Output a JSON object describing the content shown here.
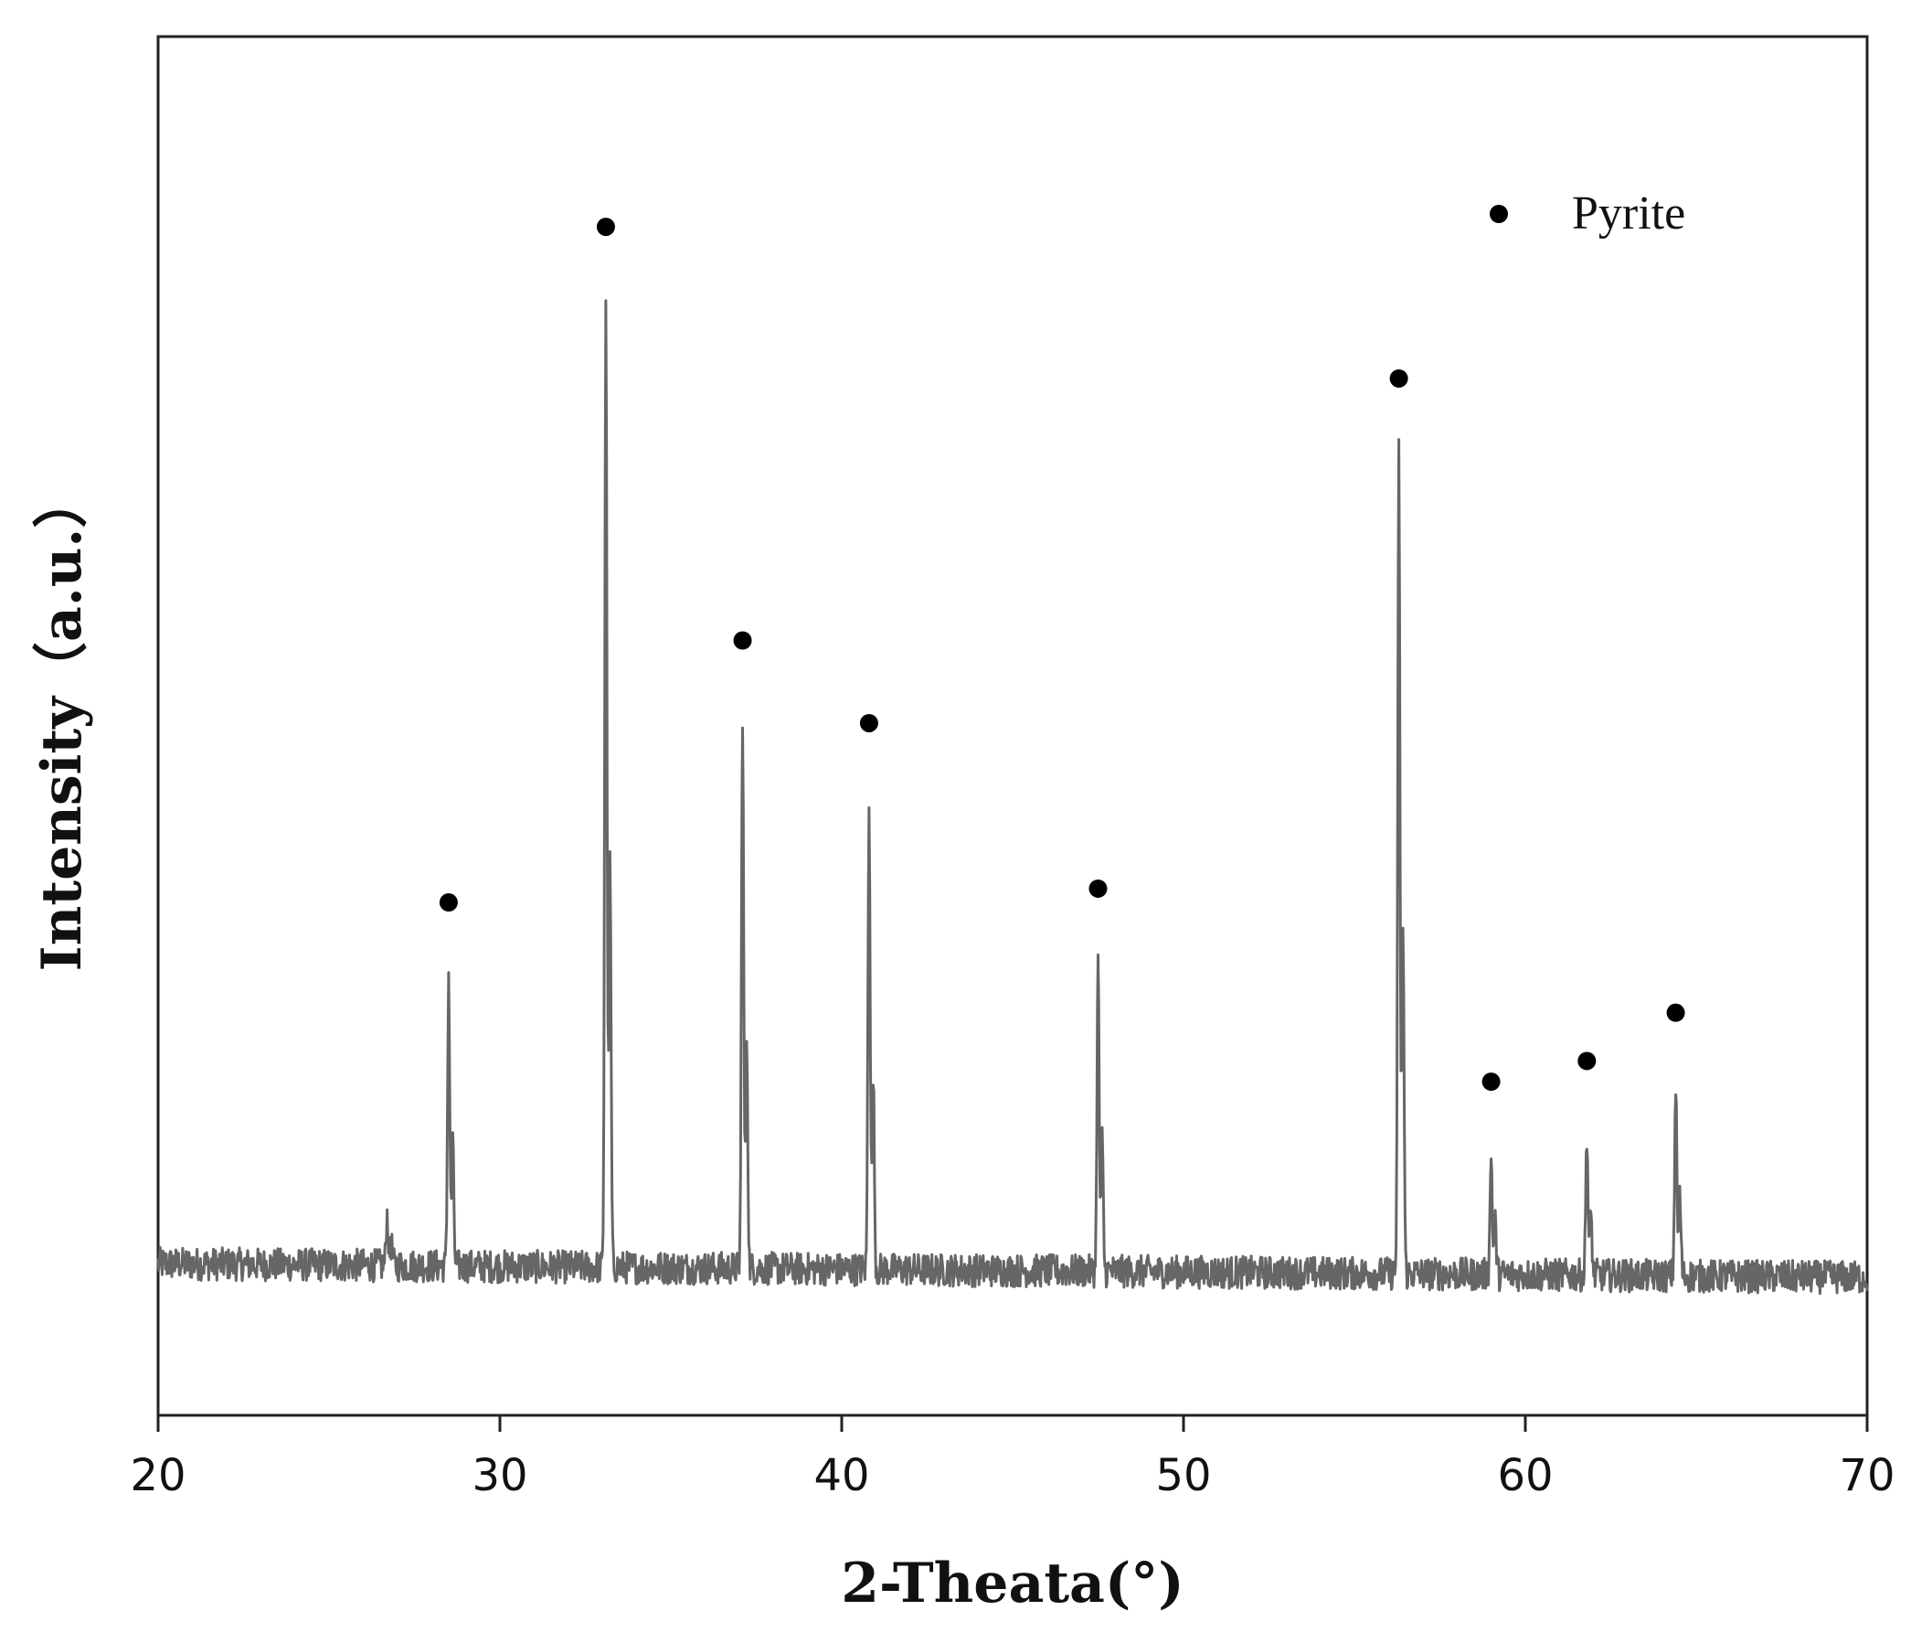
{
  "chart_data": {
    "type": "line",
    "title": "",
    "xlabel": "2-Theata(°)",
    "ylabel": "Intensity（a.u.）",
    "xlim": [
      20,
      70
    ],
    "ylim": [
      0,
      100
    ],
    "xticks": [
      "20",
      "30",
      "40",
      "50",
      "60",
      "70"
    ],
    "yticks": [],
    "grid": false,
    "legend": {
      "position": "top-right",
      "entries": [
        {
          "label": "Pyrite",
          "marker": "filled-circle"
        }
      ]
    },
    "colors": {
      "line": "#666666",
      "marker": "#000000",
      "axes": "#222222"
    },
    "baseline": {
      "start": 11.0,
      "end": 10.0
    },
    "series": [
      {
        "name": "Pyrite",
        "peaks": [
          {
            "x": 26.7,
            "y": 14.5,
            "marked": false
          },
          {
            "x": 28.5,
            "y": 32.0,
            "marked": true
          },
          {
            "x": 33.1,
            "y": 81.0,
            "marked": true
          },
          {
            "x": 37.1,
            "y": 51.0,
            "marked": true
          },
          {
            "x": 40.8,
            "y": 45.0,
            "marked": true
          },
          {
            "x": 47.5,
            "y": 33.0,
            "marked": true
          },
          {
            "x": 56.3,
            "y": 70.0,
            "marked": true
          },
          {
            "x": 59.0,
            "y": 19.0,
            "marked": true
          },
          {
            "x": 61.8,
            "y": 20.5,
            "marked": true
          },
          {
            "x": 64.4,
            "y": 24.0,
            "marked": true
          }
        ]
      }
    ]
  }
}
